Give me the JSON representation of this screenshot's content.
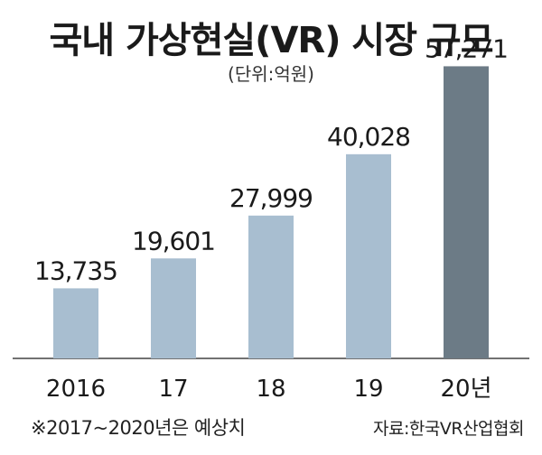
{
  "header": {
    "title": "국내 가상현실(VR) 시장 규모",
    "unit": "(단위:억원)"
  },
  "footer": {
    "note": "※2017~2020년은 예상치",
    "source": "자료:한국VR산업협회"
  },
  "colors": {
    "bar": "#a8bed0",
    "bar_highlight": "#6c7b86",
    "axis": "#444444"
  },
  "chart_data": {
    "type": "bar",
    "title": "국내 가상현실(VR) 시장 규모",
    "unit": "(단위:억원)",
    "categories": [
      "2016",
      "17",
      "18",
      "19",
      "20년"
    ],
    "values": [
      13735,
      19601,
      27999,
      40028,
      57271
    ],
    "value_labels": [
      "13,735",
      "19,601",
      "27,999",
      "40,028",
      "57,271"
    ],
    "highlight_index": 4,
    "ylim": [
      0,
      60000
    ],
    "grid": false,
    "legend": "none"
  }
}
